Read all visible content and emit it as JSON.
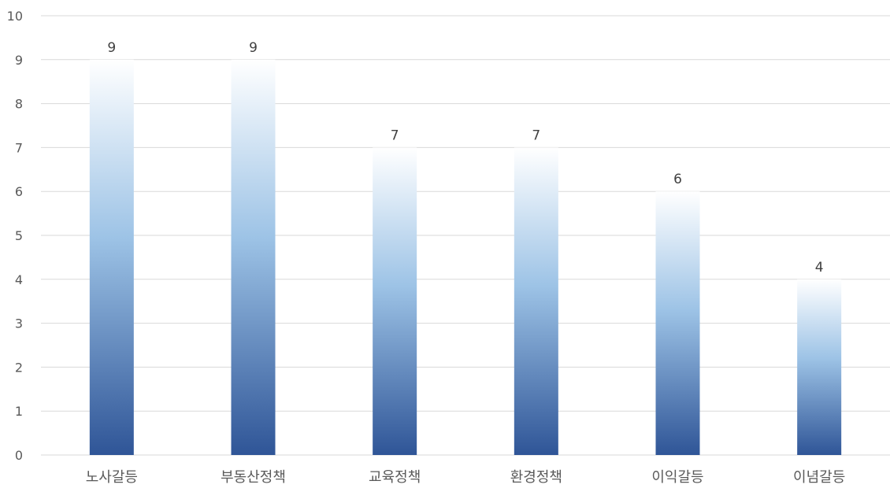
{
  "chart_data": {
    "type": "bar",
    "title": "",
    "xlabel": "",
    "ylabel": "",
    "categories": [
      "노사갈등",
      "부동산정책",
      "교육정책",
      "환경정책",
      "이익갈등",
      "이념갈등"
    ],
    "values": [
      9,
      9,
      7,
      7,
      6,
      4
    ],
    "ylim": [
      0,
      10
    ],
    "yticks": [
      0,
      1,
      2,
      3,
      4,
      5,
      6,
      7,
      8,
      9,
      10
    ],
    "grid": true,
    "legend": "none",
    "colors": {
      "bar_bottom": "#2f5597",
      "bar_mid": "#9dc3e6",
      "bar_top": "#ffffff",
      "gridline": "#d9d9d9",
      "axis_text": "#595959",
      "label_text": "#404040"
    }
  }
}
